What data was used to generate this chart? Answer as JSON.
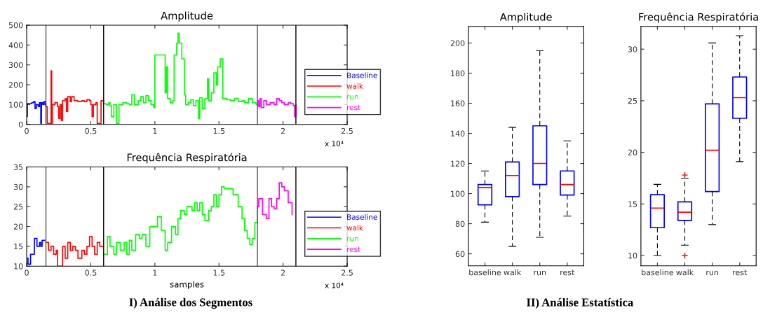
{
  "chart_data": [
    {
      "type": "step",
      "title": "Amplitude",
      "xlim": [
        0,
        2.5
      ],
      "ylim": [
        0,
        500
      ],
      "xticks": [
        0,
        0.5,
        1,
        1.5,
        2,
        2.5
      ],
      "yticks": [
        0,
        100,
        200,
        300,
        400,
        500
      ],
      "legend": "bottom right",
      "grid": false,
      "series": [
        {
          "name": "Baseline",
          "color": "#0000ff",
          "x": [
            0,
            0.005,
            0.02,
            0.04,
            0.055,
            0.065,
            0.075,
            0.09,
            0.1,
            0.11,
            0.115,
            0.125,
            0.135,
            0.145,
            0.15
          ],
          "values": [
            40,
            105,
            105,
            110,
            115,
            80,
            100,
            90,
            110,
            5,
            110,
            100,
            115,
            100,
            90
          ]
        },
        {
          "name": "walk",
          "color": "#ff0000",
          "x": [
            0.15,
            0.16,
            0.18,
            0.19,
            0.195,
            0.2,
            0.22,
            0.24,
            0.25,
            0.26,
            0.27,
            0.28,
            0.3,
            0.31,
            0.32,
            0.34,
            0.35,
            0.37,
            0.4,
            0.43,
            0.45,
            0.47,
            0.49,
            0.5,
            0.51,
            0.52,
            0.54,
            0.55,
            0.57,
            0.58,
            0.6
          ],
          "values": [
            90,
            5,
            5,
            270,
            5,
            100,
            110,
            90,
            30,
            100,
            20,
            120,
            130,
            65,
            140,
            115,
            140,
            120,
            115,
            120,
            115,
            125,
            120,
            100,
            40,
            100,
            110,
            5,
            5,
            120,
            115
          ]
        },
        {
          "name": "run",
          "color": "#00ff00",
          "x": [
            0.6,
            0.62,
            0.64,
            0.65,
            0.66,
            0.68,
            0.7,
            0.72,
            0.75,
            0.78,
            0.8,
            0.82,
            0.84,
            0.87,
            0.89,
            0.91,
            0.93,
            0.95,
            0.97,
            0.99,
            1.0,
            1.08,
            1.09,
            1.1,
            1.12,
            1.14,
            1.15,
            1.17,
            1.18,
            1.19,
            1.21,
            1.23,
            1.24,
            1.26,
            1.28,
            1.3,
            1.32,
            1.34,
            1.35,
            1.37,
            1.39,
            1.41,
            1.42,
            1.44,
            1.46,
            1.48,
            1.49,
            1.51,
            1.53,
            1.56,
            1.59,
            1.62,
            1.65,
            1.68,
            1.7,
            1.73,
            1.76,
            1.79,
            1.8
          ],
          "values": [
            105,
            100,
            110,
            95,
            40,
            100,
            5,
            100,
            110,
            105,
            100,
            150,
            100,
            120,
            140,
            110,
            145,
            120,
            100,
            85,
            350,
            160,
            290,
            130,
            110,
            120,
            350,
            410,
            460,
            410,
            330,
            150,
            100,
            110,
            125,
            95,
            120,
            30,
            135,
            80,
            130,
            230,
            120,
            160,
            260,
            200,
            290,
            330,
            130,
            125,
            120,
            130,
            115,
            120,
            110,
            130,
            110,
            100,
            95
          ]
        },
        {
          "name": "rest",
          "color": "#ff00ff",
          "x": [
            1.8,
            1.81,
            1.82,
            1.83,
            1.85,
            1.87,
            1.9,
            1.93,
            1.95,
            1.97,
            1.99,
            2.01,
            2.04,
            2.06,
            2.08,
            2.09,
            2.1
          ],
          "values": [
            120,
            90,
            130,
            85,
            120,
            100,
            110,
            100,
            130,
            120,
            110,
            100,
            110,
            105,
            95,
            40,
            100
          ]
        }
      ],
      "ref_lines": [
        {
          "axis": "x",
          "value": 0.15,
          "color": "#555555"
        },
        {
          "axis": "x",
          "value": 0.6,
          "color": "#000000"
        },
        {
          "axis": "x",
          "value": 1.8,
          "color": "#555555"
        },
        {
          "axis": "x",
          "value": 2.1,
          "color": "#000000"
        }
      ],
      "annotations": [
        "x 10⁴"
      ]
    },
    {
      "type": "step",
      "title": "Frequência Respiratória",
      "xlabel": "samples",
      "xlim": [
        0,
        2.5
      ],
      "ylim": [
        10,
        35
      ],
      "xticks": [
        0,
        0.5,
        1,
        1.5,
        2,
        2.5
      ],
      "yticks": [
        10,
        15,
        20,
        25,
        30,
        35
      ],
      "legend": "bottom right",
      "grid": false,
      "series": [
        {
          "name": "Baseline",
          "color": "#0000ff",
          "x": [
            0,
            0.01,
            0.03,
            0.05,
            0.06,
            0.08,
            0.1,
            0.11,
            0.12,
            0.14
          ],
          "values": [
            12,
            10.5,
            13,
            13,
            17,
            15,
            16,
            15,
            16.5,
            16.5
          ]
        },
        {
          "name": "walk",
          "color": "#ff0000",
          "x": [
            0.15,
            0.17,
            0.19,
            0.21,
            0.23,
            0.24,
            0.26,
            0.28,
            0.3,
            0.32,
            0.34,
            0.36,
            0.38,
            0.4,
            0.43,
            0.45,
            0.47,
            0.49,
            0.51,
            0.53,
            0.55,
            0.57,
            0.6
          ],
          "values": [
            16,
            14,
            15,
            13,
            14,
            10,
            10,
            15,
            12,
            16,
            14,
            15,
            14,
            12,
            14,
            13,
            15,
            17.5,
            15,
            13,
            16,
            15,
            15
          ]
        },
        {
          "name": "run",
          "color": "#00ff00",
          "x": [
            0.6,
            0.63,
            0.65,
            0.68,
            0.7,
            0.73,
            0.76,
            0.78,
            0.8,
            0.82,
            0.85,
            0.88,
            0.9,
            0.93,
            0.96,
            1.02,
            1.05,
            1.08,
            1.1,
            1.13,
            1.16,
            1.18,
            1.2,
            1.23,
            1.25,
            1.29,
            1.31,
            1.33,
            1.35,
            1.37,
            1.39,
            1.42,
            1.44,
            1.46,
            1.48,
            1.5,
            1.52,
            1.54,
            1.58,
            1.61,
            1.63,
            1.65,
            1.68,
            1.7,
            1.72,
            1.74,
            1.76,
            1.78,
            1.8
          ],
          "values": [
            13,
            17.5,
            15,
            13,
            16,
            14,
            16,
            13,
            16.5,
            14,
            18,
            17,
            18,
            15,
            20,
            22.5,
            19,
            14,
            16,
            20,
            18,
            22,
            24,
            23,
            25,
            24,
            26,
            24,
            26,
            23,
            21.5,
            24,
            25,
            28,
            25,
            28,
            30,
            29.5,
            29.5,
            28,
            28,
            25,
            22,
            19,
            17,
            15.5,
            17,
            21,
            25
          ]
        },
        {
          "name": "rest",
          "color": "#ff00ff",
          "x": [
            1.8,
            1.81,
            1.84,
            1.87,
            1.89,
            1.91,
            1.93,
            1.95,
            1.97,
            1.99,
            2.01,
            2.04,
            2.07
          ],
          "values": [
            25,
            27,
            23,
            22,
            27,
            25,
            24.5,
            27,
            31,
            30,
            29,
            26,
            23
          ]
        }
      ],
      "ref_lines": [
        {
          "axis": "x",
          "value": 0.15,
          "color": "#555555"
        },
        {
          "axis": "x",
          "value": 0.6,
          "color": "#000000"
        },
        {
          "axis": "x",
          "value": 1.8,
          "color": "#555555"
        },
        {
          "axis": "x",
          "value": 2.1,
          "color": "#000000"
        }
      ],
      "annotations": [
        "x 10⁴",
        "I) Análise dos Segmentos"
      ]
    },
    {
      "type": "box",
      "title": "Amplitude",
      "categories": [
        "baseline",
        "walk",
        "run",
        "rest"
      ],
      "ylim": [
        52,
        211
      ],
      "yticks": [
        60,
        80,
        100,
        120,
        140,
        160,
        180,
        200
      ],
      "grid": false,
      "series": [
        {
          "color": "#0000ff",
          "boxes": [
            {
              "low": 81,
              "q1": 92.5,
              "median": 104,
              "q3": 106,
              "high": 115
            },
            {
              "low": 65,
              "q1": 98,
              "median": 112,
              "q3": 121,
              "high": 144
            },
            {
              "low": 71,
              "q1": 106,
              "median": 120,
              "q3": 145,
              "high": 195
            },
            {
              "low": 85,
              "q1": 99,
              "median": 106,
              "q3": 115,
              "high": 135
            }
          ]
        }
      ]
    },
    {
      "type": "box",
      "title": "Frequência Respiratória",
      "categories": [
        "baseline",
        "walk",
        "run",
        "rest"
      ],
      "ylim": [
        9,
        32.2
      ],
      "yticks": [
        10,
        15,
        20,
        25,
        30
      ],
      "grid": false,
      "series": [
        {
          "color": "#0000ff",
          "boxes": [
            {
              "low": 10,
              "q1": 12.7,
              "median": 14.6,
              "q3": 15.9,
              "high": 16.9
            },
            {
              "low": 11,
              "q1": 13.4,
              "median": 14.2,
              "q3": 15.2,
              "high": 17.5,
              "outliers": [
                17.8,
                10
              ]
            },
            {
              "low": 13,
              "q1": 16.2,
              "median": 20.2,
              "q3": 24.7,
              "high": 30.6
            },
            {
              "low": 19.1,
              "q1": 23.3,
              "median": 25.3,
              "q3": 27.3,
              "high": 31.3
            }
          ]
        }
      ],
      "annotations": [
        "II) Análise Estatística"
      ]
    }
  ]
}
